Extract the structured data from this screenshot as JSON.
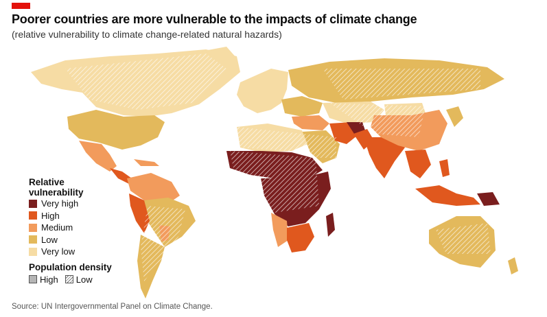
{
  "header": {
    "title": "Poorer countries are more vulnerable to the impacts of climate change",
    "subtitle": "(relative vulnerability to climate change-related natural hazards)"
  },
  "legend": {
    "title_line1": "Relative",
    "title_line2": "vulnerability",
    "levels": [
      {
        "label": "Very high",
        "color": "#7a1e1e"
      },
      {
        "label": "High",
        "color": "#e0581e"
      },
      {
        "label": "Medium",
        "color": "#f29b5c"
      },
      {
        "label": "Low",
        "color": "#e3b95c"
      },
      {
        "label": "Very low",
        "color": "#f6dca4"
      }
    ],
    "density_title": "Population density",
    "density_high": "High",
    "density_low": "Low"
  },
  "source": "Source: UN Intergovernmental Panel on Climate Change.",
  "colors": {
    "accent": "#e3120b",
    "very_high": "#7a1e1e",
    "high": "#e0581e",
    "medium": "#f29b5c",
    "low": "#e3b95c",
    "very_low": "#f6dca4"
  }
}
